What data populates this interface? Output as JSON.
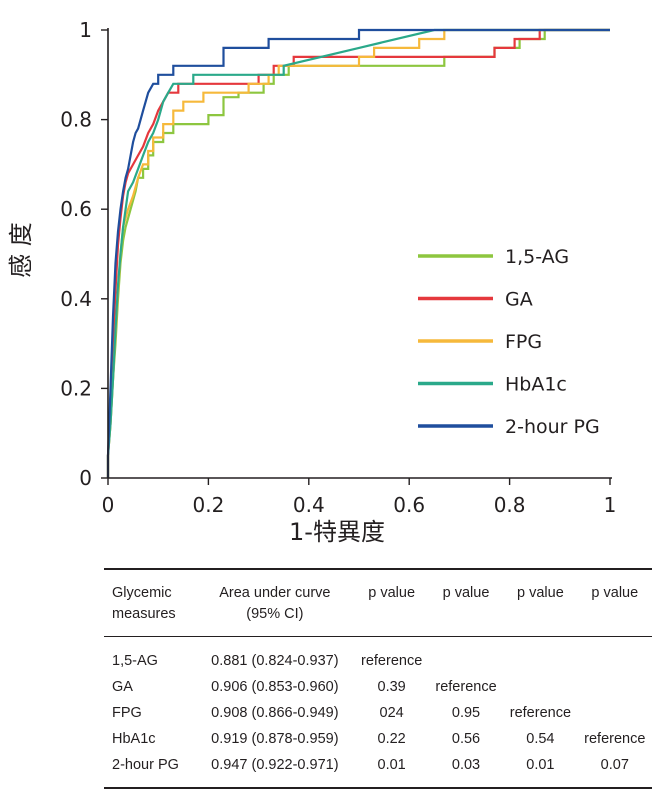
{
  "colors": {
    "axis": "#231f20",
    "1,5-AG": "#8dc63f",
    "GA": "#e5383d",
    "FPG": "#f6b93b",
    "HbA1c": "#2aa98a",
    "2-hour PG": "#1f4e9d"
  },
  "chart_data": {
    "type": "line",
    "title": "",
    "xlabel": "1-特異度",
    "ylabel": "感 度",
    "xlim": [
      0,
      1
    ],
    "ylim": [
      0,
      1
    ],
    "x_ticks": [
      "0",
      "0.2",
      "0.4",
      "0.6",
      "0.8",
      "1"
    ],
    "y_ticks": [
      "0",
      "0.2",
      "0.4",
      "0.6",
      "0.8",
      "1"
    ],
    "legend_position": "center-right",
    "series": [
      {
        "name": "1,5-AG",
        "points": [
          [
            0,
            0
          ],
          [
            0,
            0.05
          ],
          [
            0.005,
            0.12
          ],
          [
            0.01,
            0.22
          ],
          [
            0.015,
            0.3
          ],
          [
            0.02,
            0.4
          ],
          [
            0.025,
            0.48
          ],
          [
            0.03,
            0.53
          ],
          [
            0.035,
            0.56
          ],
          [
            0.04,
            0.58
          ],
          [
            0.045,
            0.6
          ],
          [
            0.05,
            0.62
          ],
          [
            0.055,
            0.64
          ],
          [
            0.06,
            0.67
          ],
          [
            0.07,
            0.67
          ],
          [
            0.07,
            0.69
          ],
          [
            0.08,
            0.69
          ],
          [
            0.08,
            0.72
          ],
          [
            0.09,
            0.72
          ],
          [
            0.09,
            0.75
          ],
          [
            0.11,
            0.75
          ],
          [
            0.11,
            0.77
          ],
          [
            0.13,
            0.77
          ],
          [
            0.13,
            0.79
          ],
          [
            0.2,
            0.79
          ],
          [
            0.2,
            0.81
          ],
          [
            0.23,
            0.81
          ],
          [
            0.23,
            0.85
          ],
          [
            0.26,
            0.85
          ],
          [
            0.26,
            0.86
          ],
          [
            0.31,
            0.86
          ],
          [
            0.31,
            0.88
          ],
          [
            0.33,
            0.88
          ],
          [
            0.33,
            0.9
          ],
          [
            0.36,
            0.9
          ],
          [
            0.36,
            0.92
          ],
          [
            0.67,
            0.92
          ],
          [
            0.67,
            0.94
          ],
          [
            0.77,
            0.94
          ],
          [
            0.77,
            0.96
          ],
          [
            0.82,
            0.96
          ],
          [
            0.82,
            0.98
          ],
          [
            0.87,
            0.98
          ],
          [
            0.87,
            1
          ],
          [
            1,
            1
          ]
        ]
      },
      {
        "name": "GA",
        "points": [
          [
            0,
            0
          ],
          [
            0,
            0.05
          ],
          [
            0.005,
            0.15
          ],
          [
            0.01,
            0.3
          ],
          [
            0.015,
            0.42
          ],
          [
            0.02,
            0.52
          ],
          [
            0.025,
            0.58
          ],
          [
            0.03,
            0.63
          ],
          [
            0.035,
            0.66
          ],
          [
            0.04,
            0.68
          ],
          [
            0.05,
            0.7
          ],
          [
            0.06,
            0.72
          ],
          [
            0.07,
            0.74
          ],
          [
            0.08,
            0.77
          ],
          [
            0.09,
            0.79
          ],
          [
            0.1,
            0.82
          ],
          [
            0.11,
            0.84
          ],
          [
            0.12,
            0.86
          ],
          [
            0.14,
            0.86
          ],
          [
            0.14,
            0.88
          ],
          [
            0.3,
            0.88
          ],
          [
            0.3,
            0.9
          ],
          [
            0.33,
            0.9
          ],
          [
            0.33,
            0.92
          ],
          [
            0.37,
            0.92
          ],
          [
            0.37,
            0.94
          ],
          [
            0.77,
            0.94
          ],
          [
            0.77,
            0.96
          ],
          [
            0.81,
            0.96
          ],
          [
            0.81,
            0.98
          ],
          [
            0.86,
            0.98
          ],
          [
            0.86,
            1
          ],
          [
            1,
            1
          ]
        ]
      },
      {
        "name": "FPG",
        "points": [
          [
            0,
            0
          ],
          [
            0,
            0.05
          ],
          [
            0.005,
            0.12
          ],
          [
            0.01,
            0.22
          ],
          [
            0.015,
            0.32
          ],
          [
            0.02,
            0.42
          ],
          [
            0.025,
            0.5
          ],
          [
            0.03,
            0.56
          ],
          [
            0.04,
            0.6
          ],
          [
            0.05,
            0.63
          ],
          [
            0.06,
            0.67
          ],
          [
            0.07,
            0.7
          ],
          [
            0.08,
            0.7
          ],
          [
            0.08,
            0.73
          ],
          [
            0.09,
            0.73
          ],
          [
            0.09,
            0.76
          ],
          [
            0.11,
            0.76
          ],
          [
            0.11,
            0.79
          ],
          [
            0.13,
            0.79
          ],
          [
            0.13,
            0.82
          ],
          [
            0.15,
            0.82
          ],
          [
            0.15,
            0.84
          ],
          [
            0.19,
            0.84
          ],
          [
            0.19,
            0.86
          ],
          [
            0.28,
            0.86
          ],
          [
            0.28,
            0.88
          ],
          [
            0.32,
            0.88
          ],
          [
            0.32,
            0.9
          ],
          [
            0.34,
            0.9
          ],
          [
            0.34,
            0.92
          ],
          [
            0.5,
            0.92
          ],
          [
            0.5,
            0.94
          ],
          [
            0.53,
            0.94
          ],
          [
            0.53,
            0.96
          ],
          [
            0.62,
            0.96
          ],
          [
            0.62,
            0.98
          ],
          [
            0.67,
            0.98
          ],
          [
            0.67,
            1
          ],
          [
            1,
            1
          ]
        ]
      },
      {
        "name": "HbA1c",
        "points": [
          [
            0,
            0
          ],
          [
            0,
            0.05
          ],
          [
            0.005,
            0.12
          ],
          [
            0.01,
            0.22
          ],
          [
            0.015,
            0.33
          ],
          [
            0.02,
            0.43
          ],
          [
            0.025,
            0.5
          ],
          [
            0.03,
            0.56
          ],
          [
            0.035,
            0.6
          ],
          [
            0.04,
            0.64
          ],
          [
            0.05,
            0.66
          ],
          [
            0.06,
            0.69
          ],
          [
            0.07,
            0.72
          ],
          [
            0.08,
            0.75
          ],
          [
            0.09,
            0.77
          ],
          [
            0.1,
            0.8
          ],
          [
            0.11,
            0.84
          ],
          [
            0.12,
            0.86
          ],
          [
            0.13,
            0.88
          ],
          [
            0.17,
            0.88
          ],
          [
            0.17,
            0.9
          ],
          [
            0.35,
            0.9
          ],
          [
            0.35,
            0.92
          ],
          [
            0.5,
            0.96
          ],
          [
            0.65,
            1
          ],
          [
            1,
            1
          ]
        ]
      },
      {
        "name": "2-hour PG",
        "points": [
          [
            0,
            0
          ],
          [
            0,
            0.05
          ],
          [
            0.005,
            0.2
          ],
          [
            0.01,
            0.36
          ],
          [
            0.015,
            0.48
          ],
          [
            0.02,
            0.55
          ],
          [
            0.025,
            0.6
          ],
          [
            0.03,
            0.64
          ],
          [
            0.035,
            0.67
          ],
          [
            0.04,
            0.69
          ],
          [
            0.045,
            0.72
          ],
          [
            0.05,
            0.75
          ],
          [
            0.055,
            0.77
          ],
          [
            0.06,
            0.78
          ],
          [
            0.07,
            0.82
          ],
          [
            0.08,
            0.86
          ],
          [
            0.09,
            0.88
          ],
          [
            0.1,
            0.88
          ],
          [
            0.1,
            0.9
          ],
          [
            0.13,
            0.9
          ],
          [
            0.13,
            0.92
          ],
          [
            0.23,
            0.92
          ],
          [
            0.23,
            0.96
          ],
          [
            0.32,
            0.96
          ],
          [
            0.32,
            0.98
          ],
          [
            0.5,
            0.98
          ],
          [
            0.5,
            1
          ],
          [
            1,
            1
          ]
        ]
      }
    ]
  },
  "table": {
    "headers": [
      [
        "Glycemic",
        "measures"
      ],
      [
        "Area under curve",
        "(95% CI)"
      ],
      [
        "p value"
      ],
      [
        "p value"
      ],
      [
        "p value"
      ],
      [
        "p value"
      ]
    ],
    "rows": [
      [
        "1,5-AG",
        "0.881 (0.824-0.937)",
        "reference",
        "",
        "",
        ""
      ],
      [
        "GA",
        "0.906 (0.853-0.960)",
        "0.39",
        "reference",
        "",
        ""
      ],
      [
        "FPG",
        "0.908 (0.866-0.949)",
        "024",
        "0.95",
        "reference",
        ""
      ],
      [
        "HbA1c",
        "0.919 (0.878-0.959)",
        "0.22",
        "0.56",
        "0.54",
        "reference"
      ],
      [
        "2-hour PG",
        "0.947 (0.922-0.971)",
        "0.01",
        "0.03",
        "0.01",
        "0.07"
      ]
    ]
  }
}
